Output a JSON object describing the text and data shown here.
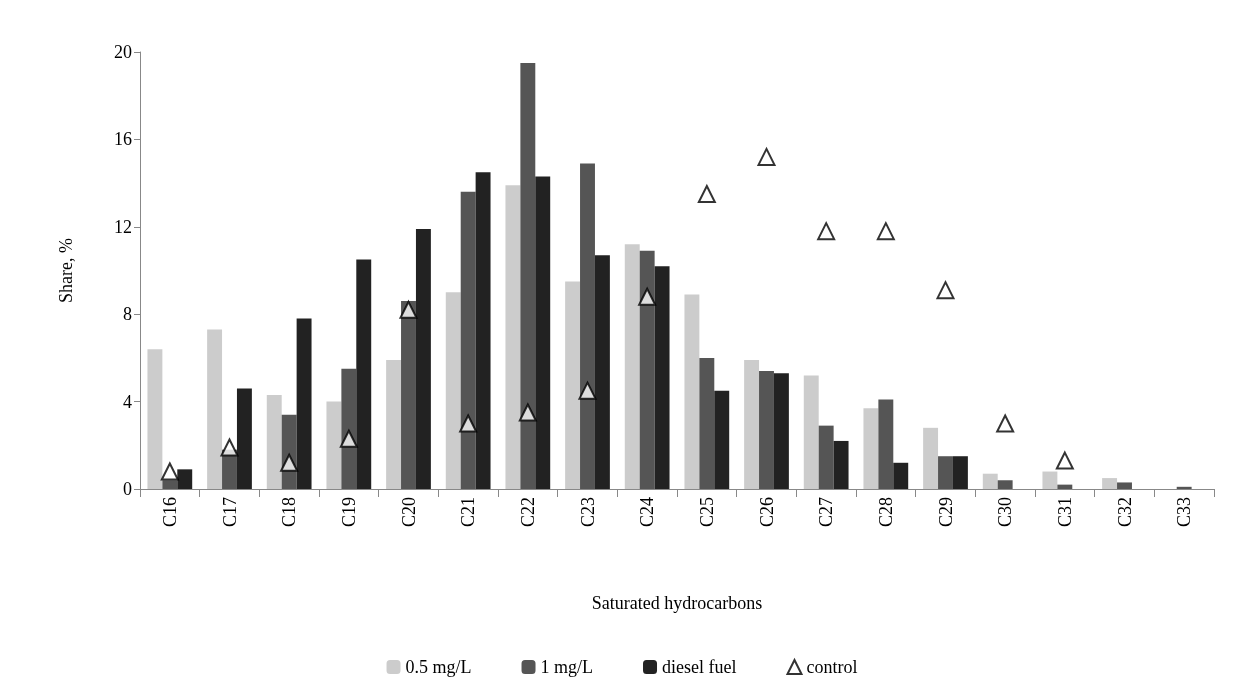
{
  "chart_data": {
    "type": "bar",
    "xlabel": "Saturated hydrocarbons",
    "ylabel": "Share, %",
    "categories": [
      "C16",
      "C17",
      "C18",
      "C19",
      "C20",
      "C21",
      "C22",
      "C23",
      "C24",
      "C25",
      "C26",
      "C27",
      "C28",
      "C29",
      "C30",
      "C31",
      "C32",
      "C33"
    ],
    "series": [
      {
        "name": "0.5 mg/L",
        "color": "#cccccc",
        "values": [
          6.4,
          7.3,
          4.3,
          4.0,
          5.9,
          9.0,
          13.9,
          9.5,
          11.2,
          8.9,
          5.9,
          5.2,
          3.7,
          2.8,
          0.7,
          0.8,
          0.5,
          0
        ]
      },
      {
        "name": "1 mg/L",
        "color": "#555555",
        "values": [
          0.4,
          1.8,
          3.4,
          5.5,
          8.6,
          13.6,
          19.5,
          14.9,
          10.9,
          6.0,
          5.4,
          2.9,
          4.1,
          1.5,
          0.4,
          0.2,
          0.3,
          0.1
        ]
      },
      {
        "name": "diesel fuel",
        "color": "#222222",
        "values": [
          0.9,
          4.6,
          7.8,
          10.5,
          11.9,
          14.5,
          14.3,
          10.7,
          10.2,
          4.5,
          5.3,
          2.2,
          1.2,
          1.5,
          0,
          0,
          0,
          0
        ]
      },
      {
        "name": "control",
        "type": "scatter",
        "color": "#000000",
        "marker": "triangle",
        "values": [
          0.8,
          1.9,
          1.2,
          2.3,
          8.2,
          3.0,
          3.5,
          4.5,
          8.8,
          13.5,
          15.2,
          11.8,
          11.8,
          9.1,
          3.0,
          1.3,
          null,
          null
        ]
      }
    ],
    "ylim": [
      0,
      20
    ],
    "yticks": [
      0,
      4,
      8,
      12,
      16,
      20
    ],
    "grid": false,
    "legend": "bottom"
  }
}
